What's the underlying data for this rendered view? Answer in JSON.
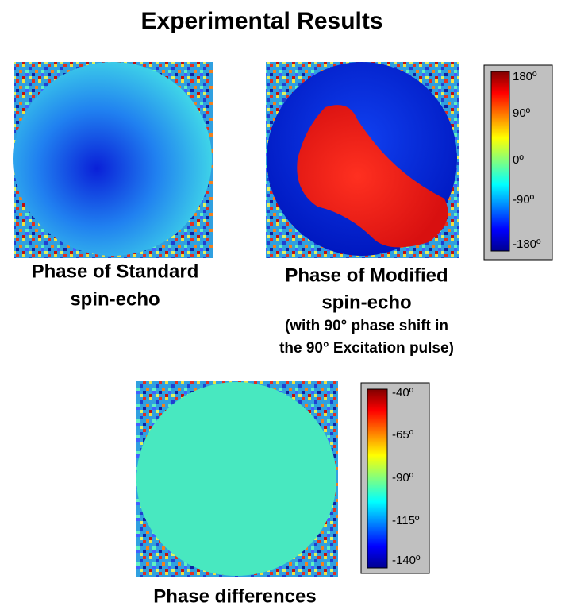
{
  "title": "Experimental Results",
  "panels": [
    {
      "caption": [
        "Phase of Standard",
        "spin-echo"
      ]
    },
    {
      "caption": [
        "Phase of Modified",
        "spin-echo"
      ],
      "note": [
        "(with 90° phase shift in",
        "the 90° Excitation pulse)"
      ]
    },
    {
      "caption": [
        "Phase differences"
      ]
    }
  ],
  "colorbars": [
    {
      "labels": [
        "180º",
        "90º",
        "0º",
        "-90º",
        "-180º"
      ]
    },
    {
      "labels": [
        "-40º",
        "-65º",
        "-90º",
        "-115º",
        "-140º"
      ]
    }
  ]
}
